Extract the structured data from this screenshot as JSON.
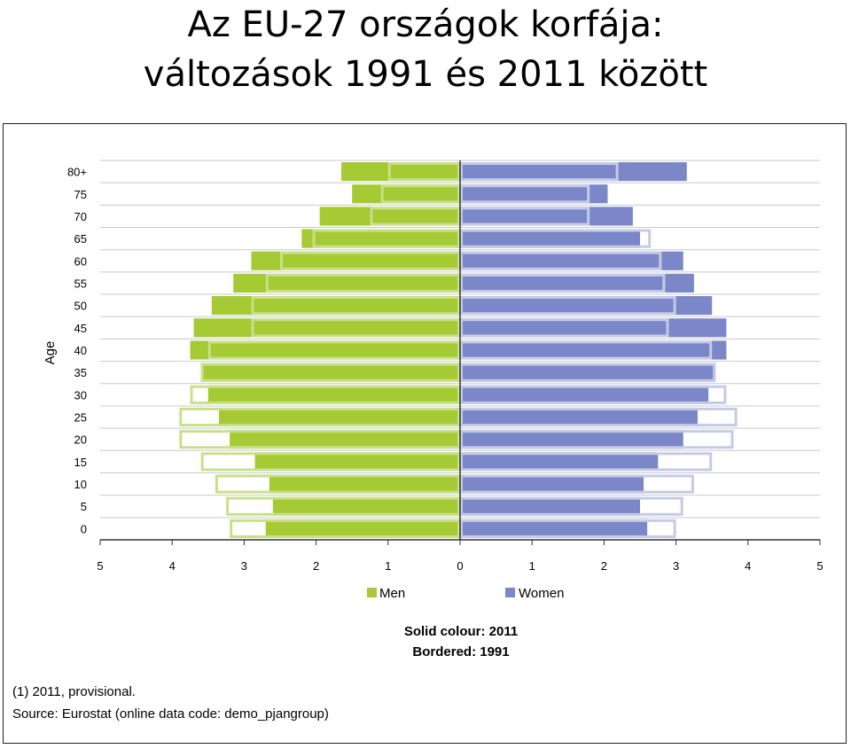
{
  "slide": {
    "title_line1": "Az EU-27 országok korfája:",
    "title_line2": "változások 1991 és 2011 között"
  },
  "chart_data": {
    "type": "bar",
    "orientation": "horizontal",
    "ylabel": "Age",
    "categories": [
      "0",
      "5",
      "10",
      "15",
      "20",
      "25",
      "30",
      "35",
      "40",
      "45",
      "50",
      "55",
      "60",
      "65",
      "70",
      "75",
      "80+"
    ],
    "xlim": [
      -5,
      5
    ],
    "x_ticks": [
      "5",
      "4",
      "3",
      "2",
      "1",
      "0",
      "1",
      "2",
      "3",
      "4",
      "5"
    ],
    "series": [
      {
        "name": "Men",
        "color": "#a6ca33",
        "year": "2011",
        "values": [
          2.7,
          2.6,
          2.65,
          2.85,
          3.2,
          3.35,
          3.5,
          3.6,
          3.75,
          3.7,
          3.45,
          3.15,
          2.9,
          2.2,
          1.95,
          1.5,
          1.65
        ]
      },
      {
        "name": "Women",
        "color": "#7b87c8",
        "year": "2011",
        "values": [
          2.6,
          2.5,
          2.55,
          2.75,
          3.1,
          3.3,
          3.45,
          3.55,
          3.7,
          3.7,
          3.5,
          3.25,
          3.1,
          2.5,
          2.4,
          2.05,
          3.15
        ]
      },
      {
        "name": "Men",
        "color": "#c8e08a",
        "year": "1991",
        "style": "bordered",
        "values": [
          3.2,
          3.25,
          3.4,
          3.6,
          3.9,
          3.9,
          3.75,
          3.6,
          3.5,
          2.9,
          2.9,
          2.7,
          2.5,
          2.05,
          1.25,
          1.1,
          1.0
        ]
      },
      {
        "name": "Women",
        "color": "#c5cbe6",
        "year": "1991",
        "style": "bordered",
        "values": [
          3.0,
          3.1,
          3.25,
          3.5,
          3.8,
          3.85,
          3.7,
          3.55,
          3.5,
          2.9,
          3.0,
          2.85,
          2.8,
          2.65,
          1.8,
          1.8,
          2.2
        ]
      }
    ],
    "legend": [
      {
        "label": "Men",
        "color": "#a6ca33"
      },
      {
        "label": "Women",
        "color": "#7b87c8"
      }
    ],
    "legend_placement": "bottom",
    "grid": "horizontal",
    "annotation_line1": "Solid colour: 2011",
    "annotation_line2": "Bordered: 1991"
  },
  "footnotes": {
    "note1": "(1) 2011, provisional.",
    "source": "Source: Eurostat (online data code: demo_pjangroup)"
  }
}
